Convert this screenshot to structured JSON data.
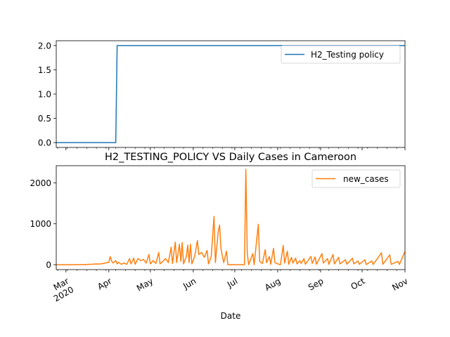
{
  "figure": {
    "title": "H2_TESTING_POLICY VS Daily Cases in Cameroon",
    "xlabel": "Date"
  },
  "colors": {
    "series1": "#1f77b4",
    "series2": "#ff7f0e",
    "axes": "#000000",
    "legend_border": "#cccccc"
  },
  "chart_data": [
    {
      "type": "line",
      "legend_position": "upper right",
      "grid": false,
      "x_range": [
        "2020-02-23",
        "2020-11-01"
      ],
      "ylim": [
        -0.1,
        2.1
      ],
      "y_ticks": [
        "0.0",
        "0.5",
        "1.0",
        "1.5",
        "2.0"
      ],
      "y_tick_values": [
        0,
        0.5,
        1.0,
        1.5,
        2.0
      ],
      "series": [
        {
          "name": "H2_Testing policy",
          "color": "#1f77b4",
          "points": [
            [
              "2020-02-23",
              0
            ],
            [
              "2020-04-06",
              0
            ],
            [
              "2020-04-07",
              2
            ],
            [
              "2020-11-01",
              2
            ]
          ]
        }
      ]
    },
    {
      "type": "line",
      "legend_position": "upper right",
      "grid": false,
      "x_range": [
        "2020-02-23",
        "2020-11-01"
      ],
      "ylim": [
        -120,
        2420
      ],
      "y_ticks": [
        "0",
        "1000",
        "2000"
      ],
      "y_tick_values": [
        0,
        1000,
        2000
      ],
      "x_ticks": [
        "Mar\n2020",
        "Apr",
        "May",
        "Jun",
        "Jul",
        "Aug",
        "Sep",
        "Oct",
        "Nov"
      ],
      "x_tick_dates": [
        "2020-03-01",
        "2020-04-01",
        "2020-05-01",
        "2020-06-01",
        "2020-07-01",
        "2020-08-01",
        "2020-09-01",
        "2020-10-01",
        "2020-11-01"
      ],
      "series": [
        {
          "name": "new_cases",
          "color": "#ff7f0e",
          "points": [
            [
              "2020-02-23",
              0
            ],
            [
              "2020-03-05",
              0
            ],
            [
              "2020-03-10",
              2
            ],
            [
              "2020-03-15",
              5
            ],
            [
              "2020-03-20",
              10
            ],
            [
              "2020-03-23",
              20
            ],
            [
              "2020-03-25",
              15
            ],
            [
              "2020-03-28",
              30
            ],
            [
              "2020-03-30",
              45
            ],
            [
              "2020-04-01",
              60
            ],
            [
              "2020-04-02",
              200
            ],
            [
              "2020-04-03",
              90
            ],
            [
              "2020-04-04",
              40
            ],
            [
              "2020-04-06",
              100
            ],
            [
              "2020-04-07",
              20
            ],
            [
              "2020-04-08",
              60
            ],
            [
              "2020-04-10",
              10
            ],
            [
              "2020-04-12",
              40
            ],
            [
              "2020-04-14",
              10
            ],
            [
              "2020-04-16",
              150
            ],
            [
              "2020-04-17",
              20
            ],
            [
              "2020-04-19",
              160
            ],
            [
              "2020-04-20",
              10
            ],
            [
              "2020-04-22",
              150
            ],
            [
              "2020-04-24",
              100
            ],
            [
              "2020-04-26",
              130
            ],
            [
              "2020-04-28",
              40
            ],
            [
              "2020-04-30",
              250
            ],
            [
              "2020-05-01",
              20
            ],
            [
              "2020-05-03",
              100
            ],
            [
              "2020-05-05",
              30
            ],
            [
              "2020-05-07",
              300
            ],
            [
              "2020-05-08",
              20
            ],
            [
              "2020-05-10",
              80
            ],
            [
              "2020-05-12",
              150
            ],
            [
              "2020-05-14",
              50
            ],
            [
              "2020-05-16",
              430
            ],
            [
              "2020-05-17",
              30
            ],
            [
              "2020-05-19",
              550
            ],
            [
              "2020-05-20",
              50
            ],
            [
              "2020-05-22",
              500
            ],
            [
              "2020-05-23",
              80
            ],
            [
              "2020-05-24",
              540
            ],
            [
              "2020-05-25",
              20
            ],
            [
              "2020-05-27",
              200
            ],
            [
              "2020-05-28",
              480
            ],
            [
              "2020-05-29",
              50
            ],
            [
              "2020-05-30",
              500
            ],
            [
              "2020-05-31",
              20
            ],
            [
              "2020-06-02",
              200
            ],
            [
              "2020-06-04",
              590
            ],
            [
              "2020-06-05",
              250
            ],
            [
              "2020-06-07",
              300
            ],
            [
              "2020-06-09",
              180
            ],
            [
              "2020-06-11",
              350
            ],
            [
              "2020-06-12",
              20
            ],
            [
              "2020-06-14",
              200
            ],
            [
              "2020-06-16",
              1180
            ],
            [
              "2020-06-17",
              50
            ],
            [
              "2020-06-19",
              800
            ],
            [
              "2020-06-20",
              970
            ],
            [
              "2020-06-21",
              400
            ],
            [
              "2020-06-23",
              50
            ],
            [
              "2020-06-25",
              330
            ],
            [
              "2020-06-26",
              0
            ],
            [
              "2020-07-08",
              0
            ],
            [
              "2020-07-09",
              2330
            ],
            [
              "2020-07-10",
              300
            ],
            [
              "2020-07-11",
              0
            ],
            [
              "2020-07-14",
              270
            ],
            [
              "2020-07-15",
              0
            ],
            [
              "2020-07-18",
              990
            ],
            [
              "2020-07-19",
              80
            ],
            [
              "2020-07-21",
              30
            ],
            [
              "2020-07-23",
              370
            ],
            [
              "2020-07-24",
              50
            ],
            [
              "2020-07-26",
              200
            ],
            [
              "2020-07-27",
              10
            ],
            [
              "2020-07-29",
              400
            ],
            [
              "2020-07-30",
              50
            ],
            [
              "2020-08-01",
              20
            ],
            [
              "2020-08-03",
              0
            ],
            [
              "2020-08-05",
              470
            ],
            [
              "2020-08-06",
              40
            ],
            [
              "2020-08-08",
              330
            ],
            [
              "2020-08-09",
              10
            ],
            [
              "2020-08-11",
              180
            ],
            [
              "2020-08-12",
              40
            ],
            [
              "2020-08-14",
              160
            ],
            [
              "2020-08-15",
              20
            ],
            [
              "2020-08-17",
              100
            ],
            [
              "2020-08-18",
              30
            ],
            [
              "2020-08-20",
              150
            ],
            [
              "2020-08-21",
              10
            ],
            [
              "2020-08-25",
              200
            ],
            [
              "2020-08-26",
              30
            ],
            [
              "2020-08-28",
              190
            ],
            [
              "2020-08-29",
              10
            ],
            [
              "2020-09-02",
              270
            ],
            [
              "2020-09-03",
              40
            ],
            [
              "2020-09-06",
              150
            ],
            [
              "2020-09-07",
              10
            ],
            [
              "2020-09-10",
              250
            ],
            [
              "2020-09-11",
              20
            ],
            [
              "2020-09-14",
              180
            ],
            [
              "2020-09-15",
              20
            ],
            [
              "2020-09-19",
              120
            ],
            [
              "2020-09-20",
              10
            ],
            [
              "2020-09-24",
              160
            ],
            [
              "2020-09-25",
              20
            ],
            [
              "2020-09-28",
              90
            ],
            [
              "2020-09-29",
              10
            ],
            [
              "2020-10-03",
              120
            ],
            [
              "2020-10-04",
              5
            ],
            [
              "2020-10-08",
              90
            ],
            [
              "2020-10-09",
              5
            ],
            [
              "2020-10-15",
              290
            ],
            [
              "2020-10-16",
              10
            ],
            [
              "2020-10-21",
              240
            ],
            [
              "2020-10-22",
              10
            ],
            [
              "2020-10-27",
              80
            ],
            [
              "2020-10-28",
              5
            ],
            [
              "2020-10-31",
              250
            ],
            [
              "2020-11-01",
              320
            ]
          ]
        }
      ]
    }
  ]
}
